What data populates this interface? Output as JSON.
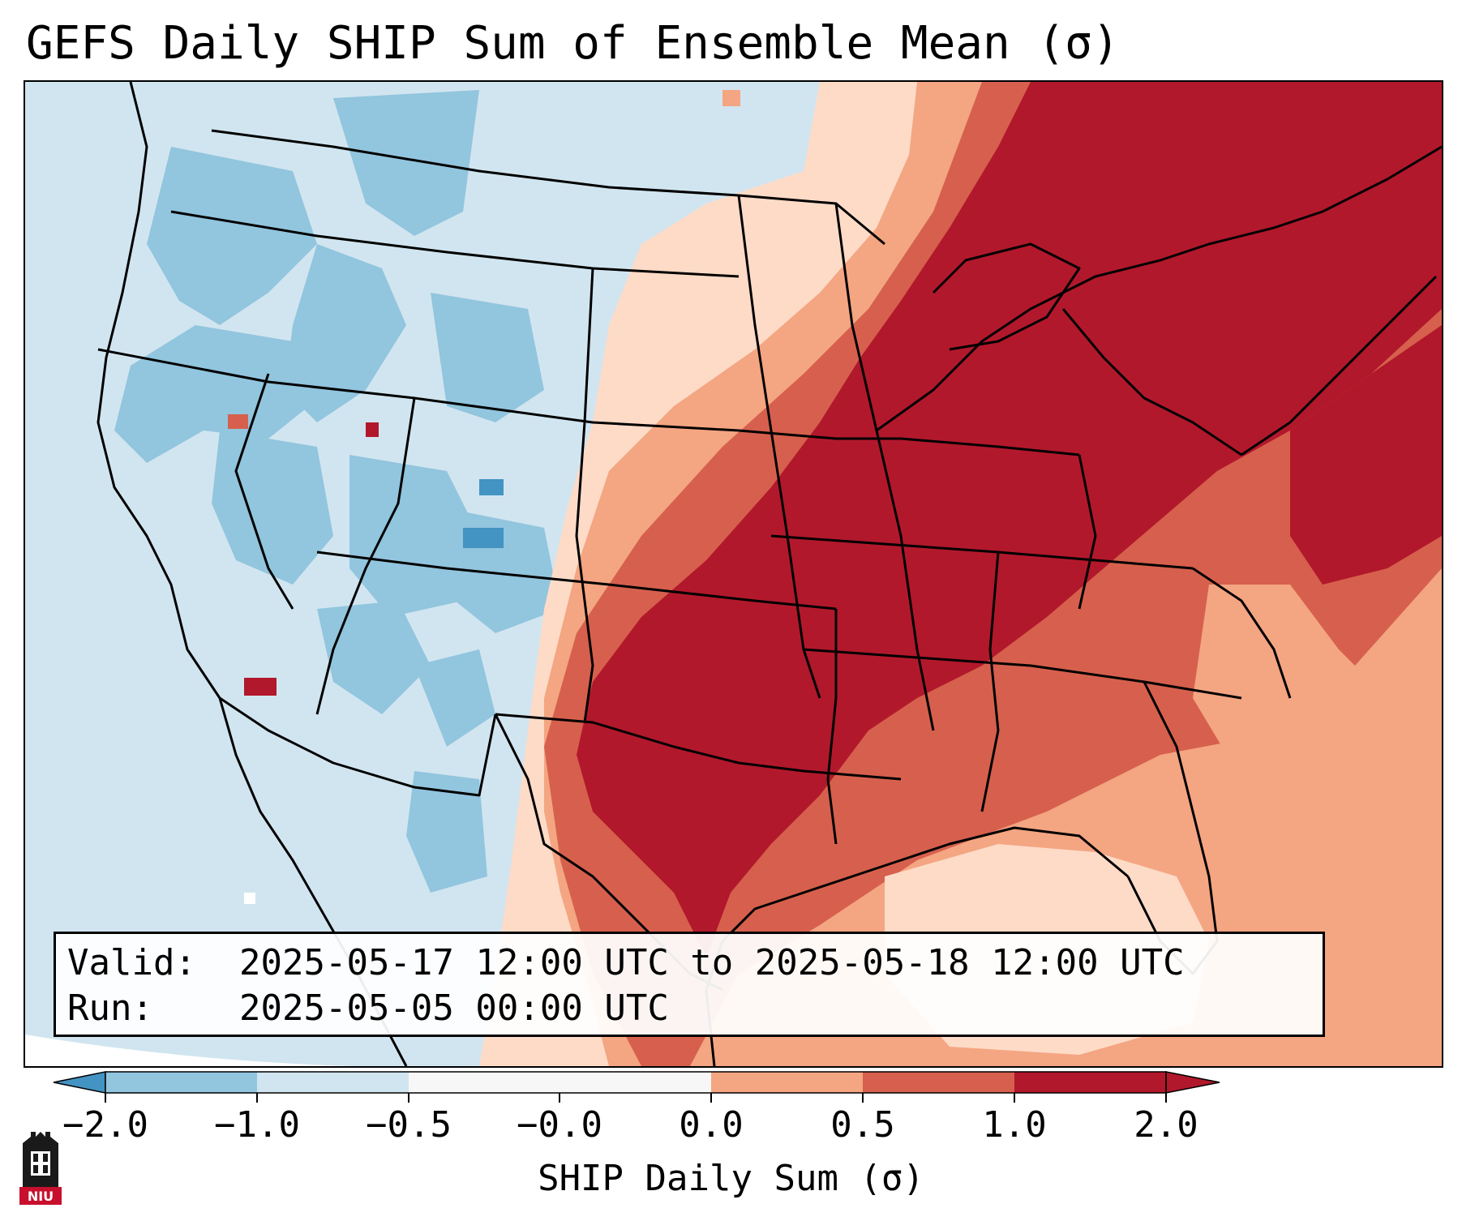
{
  "title": "GEFS Daily SHIP Sum of Ensemble Mean (σ)",
  "info": {
    "valid_label": "Valid:",
    "valid_value": "2025-05-17 12:00 UTC to 2025-05-18 12:00 UTC",
    "run_label": "Run:",
    "run_value": "2025-05-05 00:00 UTC"
  },
  "colorbar": {
    "label": "SHIP Daily Sum (σ)",
    "ticks": [
      "−2.0",
      "−1.0",
      "−0.5",
      "−0.0",
      "0.0",
      "0.5",
      "1.0",
      "2.0"
    ],
    "colors": [
      "#4393c3",
      "#92c5de",
      "#d1e5f0",
      "#f7f7f7",
      "#fddbc7",
      "#f4a582",
      "#d6604d",
      "#b2182b"
    ]
  },
  "logo": {
    "text": "NIU",
    "color": "#c8102e"
  }
}
